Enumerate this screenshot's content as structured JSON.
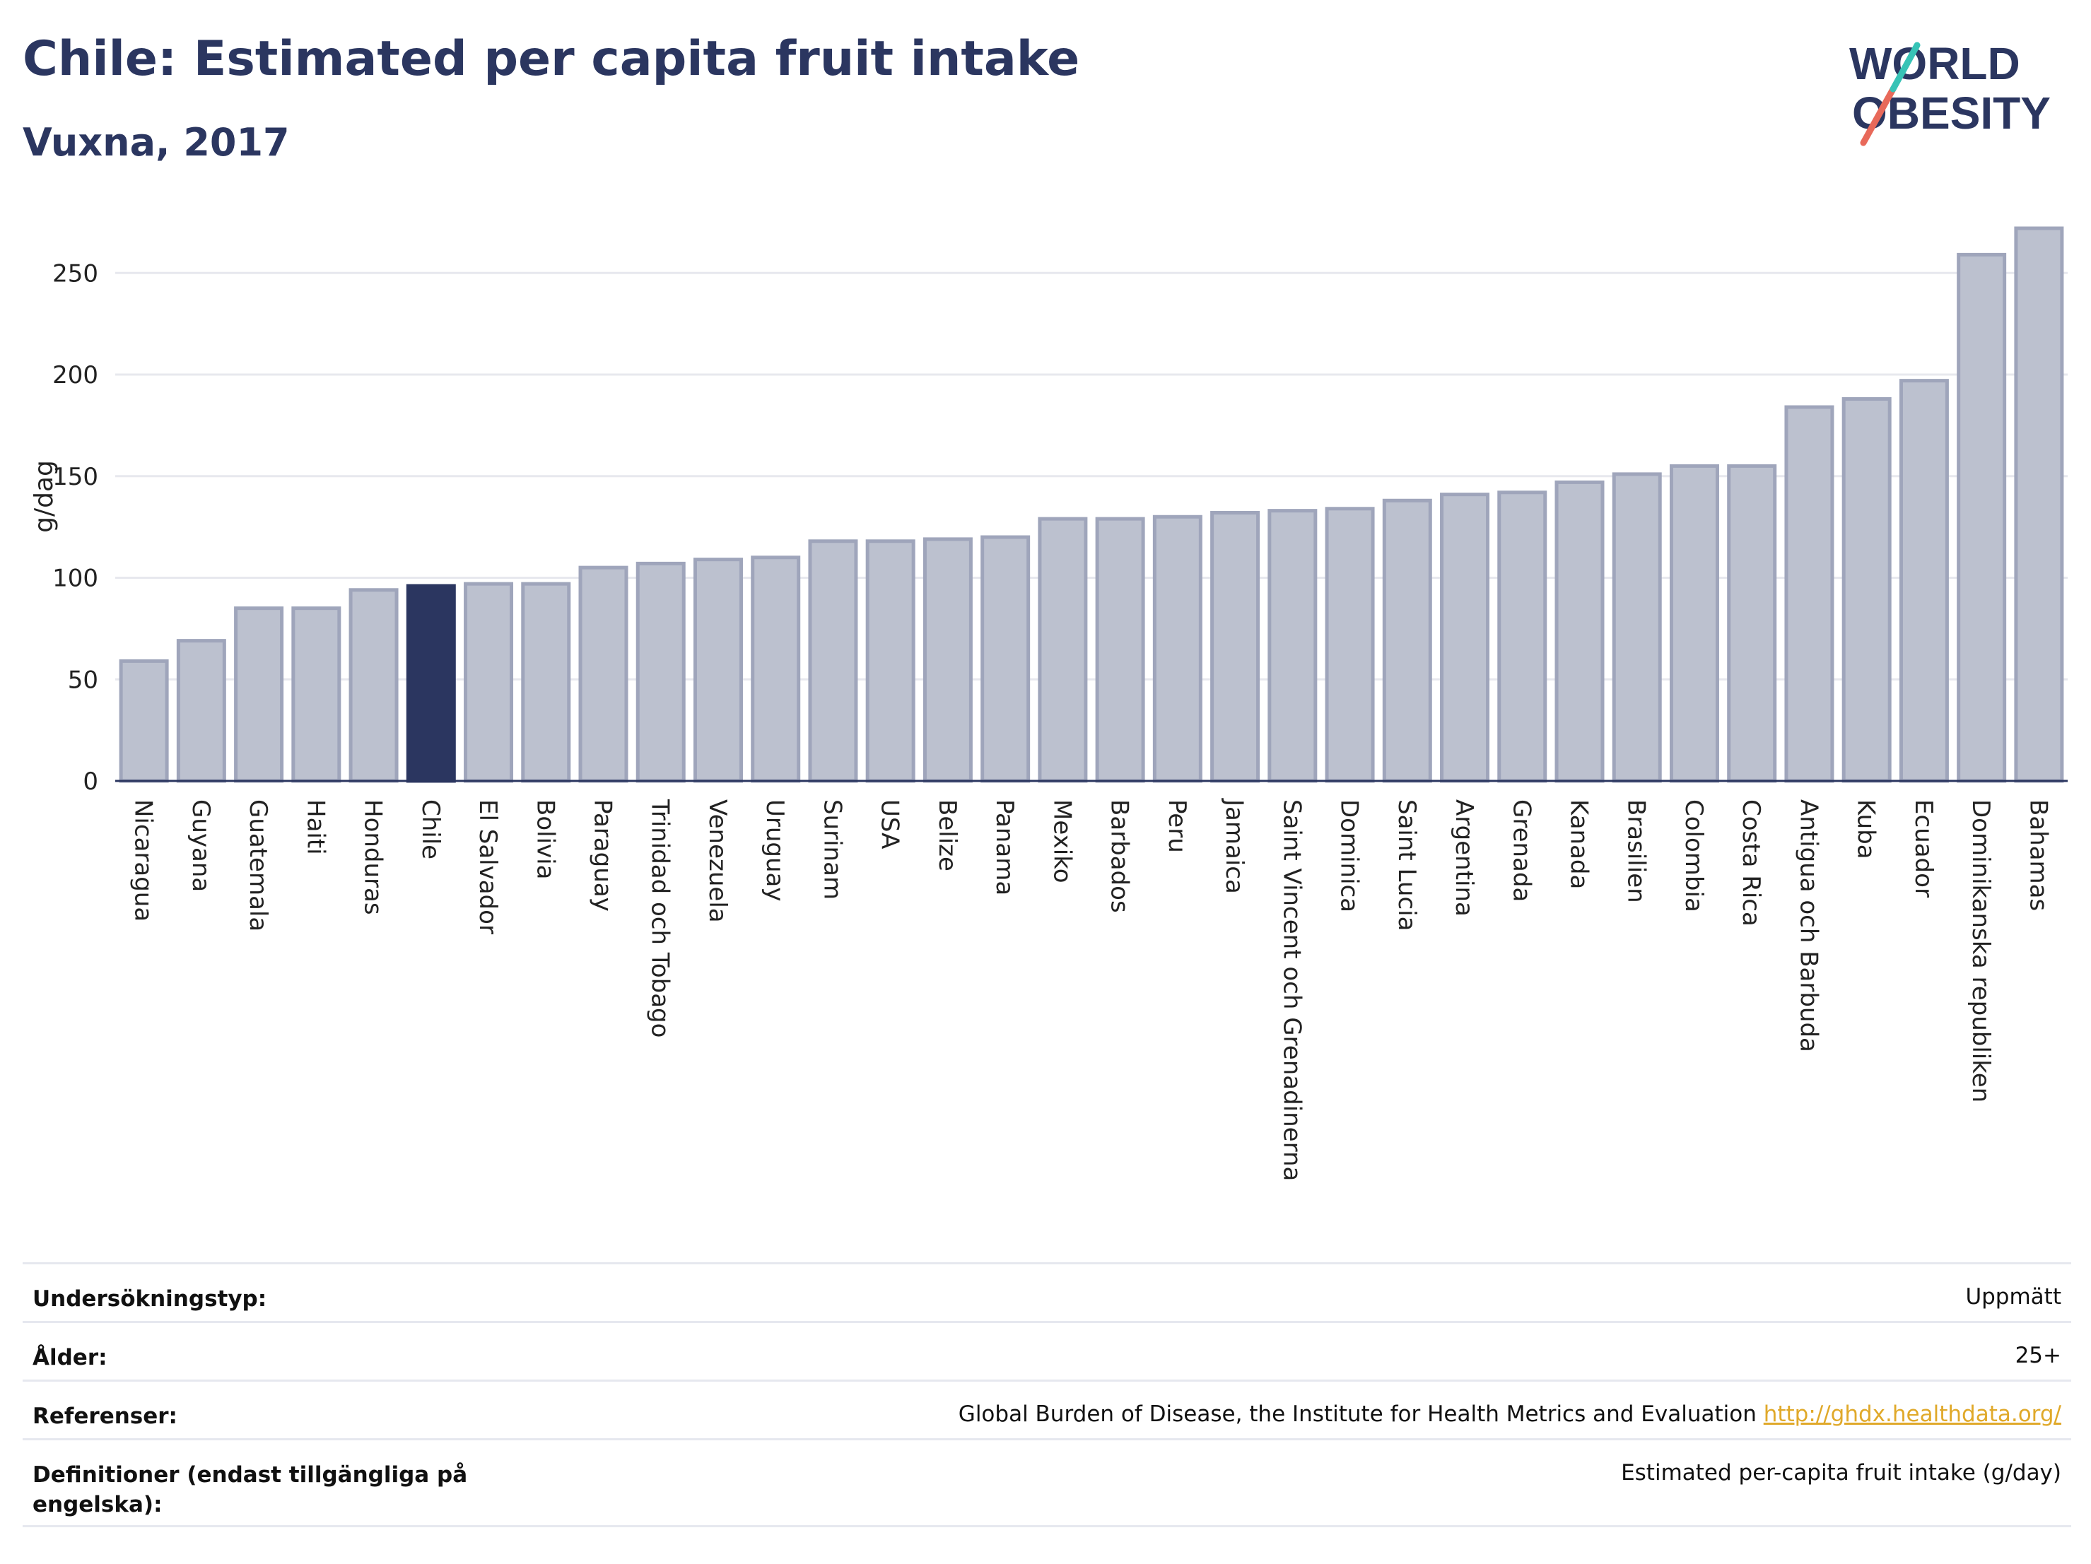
{
  "header": {
    "title": "Chile: Estimated per capita fruit intake",
    "subtitle": "Vuxna, 2017"
  },
  "logo": {
    "line1": "WORLD",
    "line2": "OBESITY",
    "accent_colors": [
      "#e8695a",
      "#37c3b6"
    ]
  },
  "colors": {
    "highlight": "#2b3660",
    "bar": "#bcc1cf",
    "bar_border": "#9fa5bb",
    "text": "#2b3660"
  },
  "chart_data": {
    "type": "bar",
    "title": "Chile: Estimated per capita fruit intake",
    "subtitle": "Vuxna, 2017",
    "ylabel": "g/dag",
    "xlabel": "",
    "ylim": [
      0,
      280
    ],
    "yticks": [
      0,
      50,
      100,
      150,
      200,
      250
    ],
    "grid": true,
    "highlight": "Chile",
    "categories": [
      "Nicaragua",
      "Guyana",
      "Guatemala",
      "Haiti",
      "Honduras",
      "Chile",
      "El Salvador",
      "Bolivia",
      "Paraguay",
      "Trinidad och Tobago",
      "Venezuela",
      "Uruguay",
      "Surinam",
      "USA",
      "Belize",
      "Panama",
      "Mexiko",
      "Barbados",
      "Peru",
      "Jamaica",
      "Saint Vincent och Grenadinerna",
      "Dominica",
      "Saint Lucia",
      "Argentina",
      "Grenada",
      "Kanada",
      "Brasilien",
      "Colombia",
      "Costa Rica",
      "Antigua och Barbuda",
      "Kuba",
      "Ecuador",
      "Dominikanska republiken",
      "Bahamas"
    ],
    "values": [
      59,
      69,
      85,
      85,
      94,
      96,
      97,
      97,
      105,
      107,
      109,
      110,
      118,
      118,
      119,
      120,
      129,
      129,
      130,
      132,
      133,
      134,
      138,
      141,
      142,
      147,
      151,
      155,
      155,
      184,
      188,
      197,
      259,
      272
    ]
  },
  "info_table": [
    {
      "label": "Undersökningstyp:",
      "value": "Uppmätt"
    },
    {
      "label": "Ålder:",
      "value": "25+"
    },
    {
      "label": "Referenser:",
      "value": "Global Burden of Disease, the Institute for Health Metrics and Evaluation",
      "link": "http://ghdx.healthdata.org/"
    },
    {
      "label": "Definitioner (endast tillgängliga på engelska):",
      "value": "Estimated per-capita fruit intake (g/day)"
    }
  ]
}
